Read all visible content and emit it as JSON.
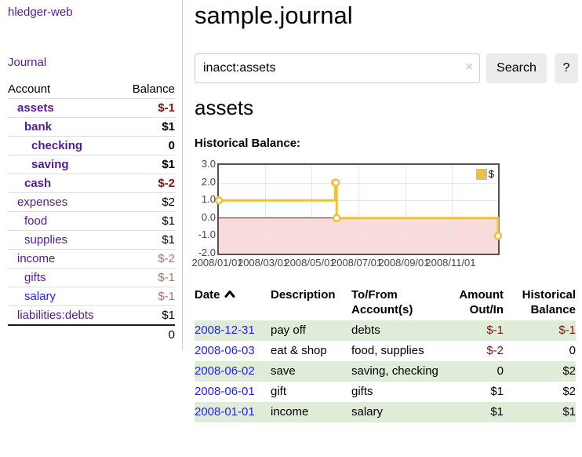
{
  "app": {
    "title": "hledger-web"
  },
  "colors": {
    "link_visited": "#551a8b",
    "link_unvisited": "#2222ee",
    "negative_strong": "#7c1313",
    "negative_muted": "#b66c6c",
    "row_highlight_green": "#deecd8",
    "chart_line": "#edc240",
    "chart_negative_fill": "#fadbdb",
    "chart_zero_line": "#a00000",
    "button_bg": "#ececec"
  },
  "sidebar": {
    "journal_label": "Journal",
    "accounts": {
      "header_account": "Account",
      "header_balance": "Balance",
      "rows": [
        {
          "name": "assets",
          "balance": "$-1",
          "indent": 1,
          "in_query": true,
          "balance_tone": "negative-strong",
          "link_style": "visited"
        },
        {
          "name": "bank",
          "balance": "$1",
          "indent": 2,
          "in_query": true,
          "balance_tone": "normal",
          "link_style": "visited"
        },
        {
          "name": "checking",
          "balance": "0",
          "indent": 3,
          "in_query": true,
          "balance_tone": "normal",
          "link_style": "visited"
        },
        {
          "name": "saving",
          "balance": "$1",
          "indent": 3,
          "in_query": true,
          "balance_tone": "normal",
          "link_style": "visited"
        },
        {
          "name": "cash",
          "balance": "$-2",
          "indent": 2,
          "in_query": true,
          "balance_tone": "negative-strong",
          "link_style": "visited"
        },
        {
          "name": "expenses",
          "balance": "$2",
          "indent": 1,
          "in_query": false,
          "balance_tone": "normal",
          "link_style": "visited"
        },
        {
          "name": "food",
          "balance": "$1",
          "indent": 2,
          "in_query": false,
          "balance_tone": "normal",
          "link_style": "visited"
        },
        {
          "name": "supplies",
          "balance": "$1",
          "indent": 2,
          "in_query": false,
          "balance_tone": "normal",
          "link_style": "visited"
        },
        {
          "name": "income",
          "balance": "$-2",
          "indent": 1,
          "in_query": false,
          "balance_tone": "negative-muted",
          "link_style": "visited"
        },
        {
          "name": "gifts",
          "balance": "$-1",
          "indent": 2,
          "in_query": false,
          "balance_tone": "negative-muted",
          "link_style": "visited"
        },
        {
          "name": "salary",
          "balance": "$-1",
          "indent": 2,
          "in_query": false,
          "balance_tone": "negative-muted",
          "link_style": "unvisited"
        },
        {
          "name": "liabilities:debts",
          "balance": "$1",
          "indent": 1,
          "in_query": false,
          "balance_tone": "normal",
          "link_style": "visited"
        }
      ],
      "total": "0"
    }
  },
  "main": {
    "title": "sample.journal",
    "search": {
      "value": "inacct:assets",
      "clear_icon": "×",
      "button_label": "Search",
      "help_label": "?"
    },
    "account_heading": "assets",
    "chart_heading": "Historical Balance:"
  },
  "chart_data": {
    "type": "line",
    "step": true,
    "title": "Historical Balance:",
    "series": [
      {
        "name": "$",
        "color": "#edc240",
        "points": [
          [
            "2008/01/01",
            1
          ],
          [
            "2008/06/01",
            2
          ],
          [
            "2008/06/02",
            2
          ],
          [
            "2008/06/03",
            0
          ],
          [
            "2008/12/31",
            -1
          ]
        ]
      }
    ],
    "xlim": [
      "2008/01/01",
      "2008/12/31"
    ],
    "ylim": [
      -2,
      3
    ],
    "x_ticks": [
      "2008/01/01",
      "2008/03/01",
      "2008/05/01",
      "2008/07/01",
      "2008/09/01",
      "2008/11/01"
    ],
    "y_ticks": [
      3,
      2,
      1,
      0,
      -1,
      -2
    ],
    "y_tick_labels": [
      "3.0",
      "2.0",
      "1.0",
      "0.0",
      "-1.0",
      "-2.0"
    ],
    "grid": true,
    "legend": {
      "position": "top-right",
      "label": "$"
    },
    "negative_region": true
  },
  "register": {
    "headers": [
      {
        "line1": "Date",
        "line2": "",
        "align": "left",
        "sort": "ascending"
      },
      {
        "line1": "Description",
        "line2": "",
        "align": "left"
      },
      {
        "line1": "To/From",
        "line2": "Account(s)",
        "align": "left"
      },
      {
        "line1": "Amount",
        "line2": "Out/In",
        "align": "right"
      },
      {
        "line1": "Historical",
        "line2": "Balance",
        "align": "right"
      }
    ],
    "rows": [
      {
        "date": "2008-12-31",
        "description": "pay off",
        "accounts": "debts",
        "amount": "$-1",
        "balance": "$-1",
        "amount_tone": "negative",
        "balance_tone": "negative",
        "highlighted": true
      },
      {
        "date": "2008-06-03",
        "description": "eat & shop",
        "accounts": "food, supplies",
        "amount": "$-2",
        "balance": "0",
        "amount_tone": "negative",
        "balance_tone": "normal",
        "highlighted": false
      },
      {
        "date": "2008-06-02",
        "description": "save",
        "accounts": "saving, checking",
        "amount": "0",
        "balance": "$2",
        "amount_tone": "normal",
        "balance_tone": "normal",
        "highlighted": true
      },
      {
        "date": "2008-06-01",
        "description": "gift",
        "accounts": "gifts",
        "amount": "$1",
        "balance": "$2",
        "amount_tone": "normal",
        "balance_tone": "normal",
        "highlighted": false
      },
      {
        "date": "2008-01-01",
        "description": "income",
        "accounts": "salary",
        "amount": "$1",
        "balance": "$1",
        "amount_tone": "normal",
        "balance_tone": "normal",
        "highlighted": true
      }
    ]
  }
}
